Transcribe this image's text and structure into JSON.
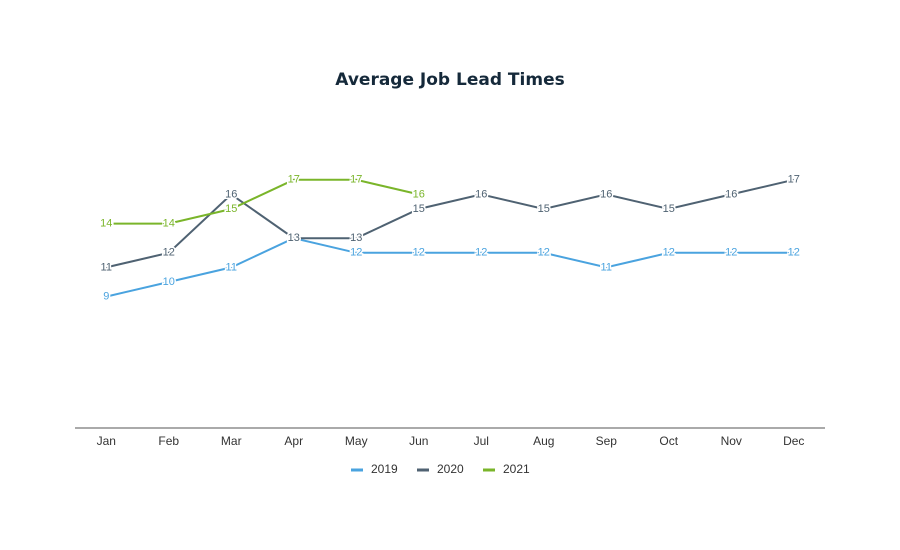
{
  "chart_data": {
    "type": "line",
    "title": "Average Job Lead Times",
    "categories": [
      "Jan",
      "Feb",
      "Mar",
      "Apr",
      "May",
      "Jun",
      "Jul",
      "Aug",
      "Sep",
      "Oct",
      "Nov",
      "Dec"
    ],
    "series": [
      {
        "name": "2019",
        "color": "#4aa3df",
        "values": [
          9,
          10,
          11,
          13,
          12,
          12,
          12,
          12,
          11,
          12,
          12,
          12
        ]
      },
      {
        "name": "2020",
        "color": "#4f6272",
        "values": [
          11,
          12,
          16,
          13,
          13,
          15,
          16,
          15,
          16,
          15,
          16,
          17
        ]
      },
      {
        "name": "2021",
        "color": "#7ab52a",
        "values": [
          14,
          14,
          15,
          17,
          17,
          16,
          null,
          null,
          null,
          null,
          null,
          null
        ]
      }
    ],
    "ylim": [
      0,
      20
    ]
  }
}
